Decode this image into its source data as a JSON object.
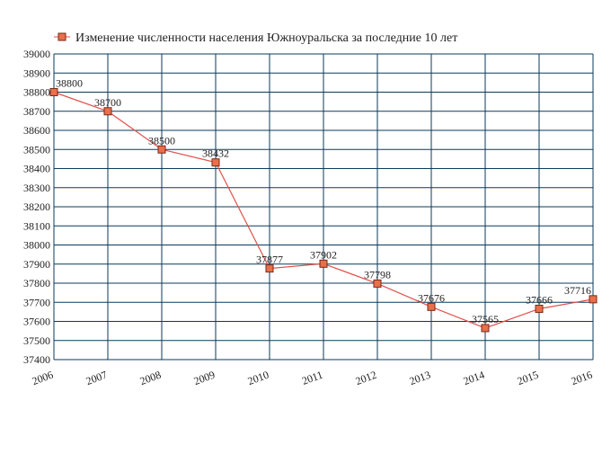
{
  "chart_data": {
    "type": "line",
    "legend": {
      "label": "Изменение численности населения Южноуральска за последние 10 лет",
      "position": "top-left"
    },
    "x": [
      "2006",
      "2007",
      "2008",
      "2009",
      "2010",
      "2011",
      "2012",
      "2013",
      "2014",
      "2015",
      "2016"
    ],
    "series": [
      {
        "name": "Изменение численности населения Южноуральска за последние 10 лет",
        "values": [
          38800,
          38700,
          38500,
          38432,
          37877,
          37902,
          37798,
          37676,
          37565,
          37666,
          37716
        ],
        "labels": [
          "38800",
          "38700",
          "38500",
          "38432",
          "37877",
          "37902",
          "37798",
          "37676",
          "37565",
          "37666",
          "37716"
        ]
      }
    ],
    "ylim": [
      37400,
      39000
    ],
    "ytick_labels": [
      "37400",
      "37500",
      "37600",
      "37700",
      "37800",
      "37900",
      "38000",
      "38100",
      "38200",
      "38300",
      "38400",
      "38500",
      "38600",
      "38700",
      "38800",
      "38900",
      "39000"
    ],
    "grid": true,
    "colors": {
      "line": "#e0504a",
      "marker_fill": "#e8704a",
      "marker_stroke": "#7a2a18",
      "grid": "#0b3a5a"
    }
  }
}
